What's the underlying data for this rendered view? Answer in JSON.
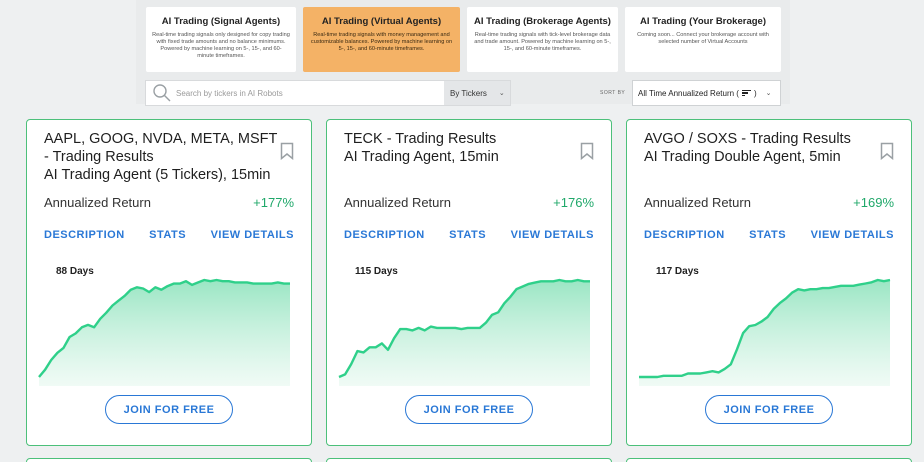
{
  "agent_types": [
    {
      "title": "AI Trading (Signal Agents)",
      "desc": "Real-time trading signals only designed for copy trading with fixed trade amounts and no balance minimums. Powered by machine learning on 5-, 15-, and 60-minute timeframes.",
      "active": false
    },
    {
      "title": "AI Trading (Virtual Agents)",
      "desc": "Real-time trading signals with money management and customizable balances. Powered by machine learning on 5-, 15-, and 60-minute timeframes.",
      "active": true
    },
    {
      "title": "AI Trading (Brokerage Agents)",
      "desc": "Real-time trading signals with tick-level brokerage data and trade amount. Powered by machine learning on 5-, 15-, and 60-minute timeframes.",
      "active": false
    },
    {
      "title": "AI Trading (Your Brokerage)",
      "desc": "Coming soon... Connect your brokerage account with selected number of Virtual Accounts",
      "active": false
    }
  ],
  "search": {
    "placeholder": "Search by tickers in AI Robots",
    "mode": "By Tickers"
  },
  "sort": {
    "label": "SORT BY",
    "value": "All Time Annualized Return (",
    "value_suffix": ")"
  },
  "colors": {
    "accent_green": "#4cc07a",
    "return_green": "#20a86a",
    "link_blue": "#2a78d6",
    "active_orange": "#f4b266"
  },
  "cards": [
    {
      "title_lines": [
        "AAPL, GOOG, NVDA, META, MSFT",
        "- Trading Results",
        "AI Trading Agent (5 Tickers), 15min"
      ],
      "return_label": "Annualized Return",
      "return_value": "+177%",
      "links": [
        "DESCRIPTION",
        "STATS",
        "VIEW DETAILS"
      ],
      "days": "88 Days",
      "join": "JOIN FOR FREE",
      "series": [
        0,
        6,
        14,
        20,
        24,
        33,
        36,
        41,
        43,
        41,
        48,
        53,
        59,
        63,
        67,
        72,
        74,
        73,
        70,
        74,
        72,
        75,
        77,
        77,
        79,
        76,
        78,
        80,
        79,
        80,
        79,
        79,
        78,
        78,
        78,
        77,
        77,
        77,
        77,
        78,
        77,
        77
      ]
    },
    {
      "title_lines": [
        "TECK - Trading Results",
        "AI Trading Agent, 15min"
      ],
      "return_label": "Annualized Return",
      "return_value": "+176%",
      "links": [
        "DESCRIPTION",
        "STATS",
        "VIEW DETAILS"
      ],
      "days": "115 Days",
      "join": "JOIN FOR FREE",
      "series": [
        0,
        2,
        10,
        20,
        19,
        23,
        23,
        26,
        21,
        30,
        37,
        37,
        36,
        38,
        36,
        39,
        38,
        38,
        38,
        38,
        37,
        38,
        38,
        38,
        42,
        48,
        50,
        57,
        62,
        68,
        70,
        72,
        73,
        74,
        74,
        74,
        75,
        74,
        74,
        75,
        74,
        74
      ]
    },
    {
      "title_lines": [
        "AVGO / SOXS - Trading Results",
        "AI Trading Double Agent, 5min"
      ],
      "return_label": "Annualized Return",
      "return_value": "+169%",
      "links": [
        "DESCRIPTION",
        "STATS",
        "VIEW DETAILS"
      ],
      "days": "117 Days",
      "join": "JOIN FOR FREE",
      "series": [
        0,
        0,
        0,
        0,
        1,
        1,
        1,
        1,
        3,
        3,
        3,
        4,
        5,
        4,
        7,
        11,
        24,
        38,
        44,
        45,
        48,
        52,
        59,
        64,
        68,
        73,
        76,
        75,
        76,
        76,
        77,
        77,
        78,
        79,
        79,
        79,
        80,
        81,
        82,
        84,
        83,
        84
      ]
    }
  ]
}
